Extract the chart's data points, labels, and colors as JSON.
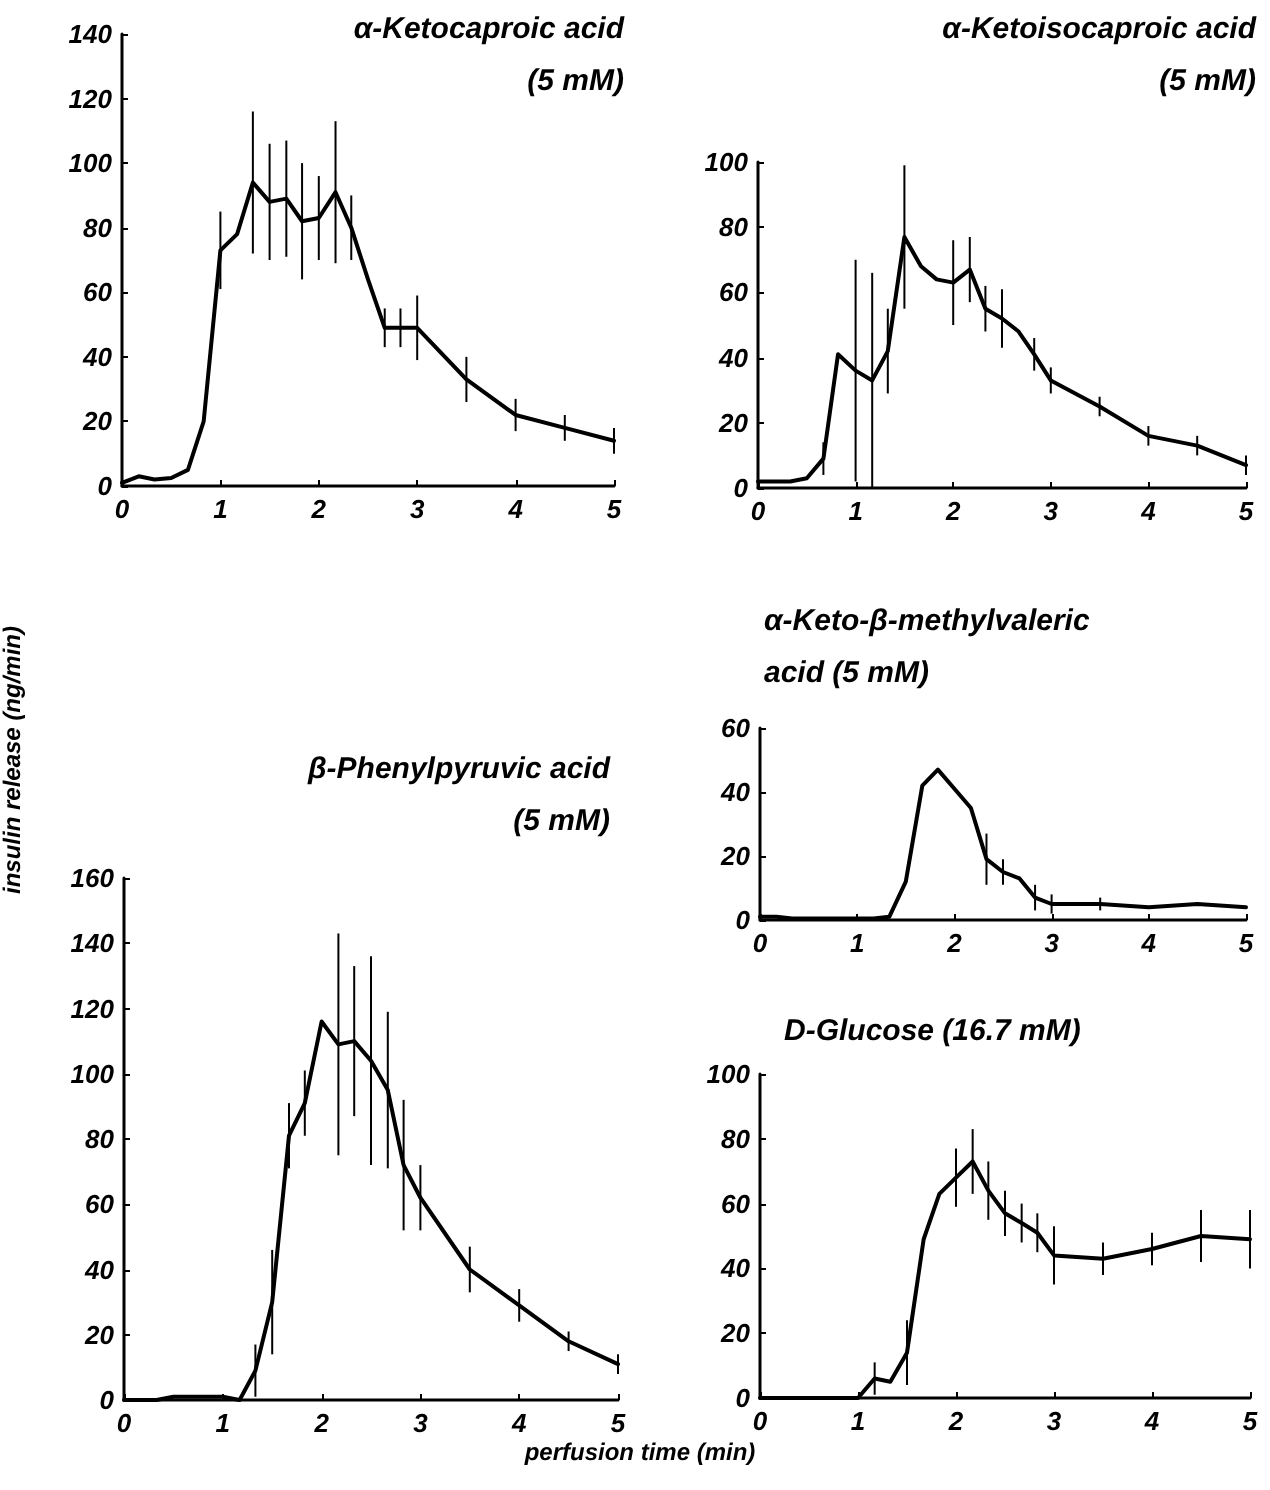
{
  "chart_data": [
    {
      "type": "line",
      "title": "α-Ketocaproic acid (5 mM)",
      "x": [
        0,
        0.17,
        0.33,
        0.5,
        0.67,
        0.83,
        1.0,
        1.17,
        1.33,
        1.5,
        1.67,
        1.83,
        2.0,
        2.17,
        2.33,
        2.5,
        2.67,
        2.83,
        3.0,
        3.5,
        4,
        4.5,
        5
      ],
      "xlim": [
        0,
        5
      ],
      "xticks": [
        0,
        1,
        2,
        3,
        4,
        5
      ],
      "ylim": [
        0,
        140
      ],
      "yticks": [
        0,
        20,
        40,
        60,
        80,
        100,
        120,
        140
      ],
      "line_style": "solid",
      "series": [
        {
          "color": "#000000",
          "values": [
            1,
            3,
            2,
            2.5,
            5,
            20,
            73,
            78,
            94,
            88,
            89,
            82,
            83,
            91,
            80,
            64,
            49,
            49,
            49,
            33,
            22,
            18,
            14
          ],
          "errors": [
            null,
            null,
            null,
            null,
            null,
            null,
            12,
            null,
            22,
            18,
            18,
            18,
            13,
            22,
            10,
            null,
            6,
            6,
            10,
            7,
            5,
            4,
            4
          ]
        }
      ]
    },
    {
      "type": "line",
      "title": "α-Ketoisocaproic acid (5 mM)",
      "x": [
        0,
        0.17,
        0.33,
        0.5,
        0.67,
        0.82,
        1.0,
        1.17,
        1.33,
        1.5,
        1.67,
        1.83,
        2.0,
        2.17,
        2.33,
        2.5,
        2.67,
        2.83,
        3.0,
        3.5,
        4,
        4.5,
        5
      ],
      "xlim": [
        0,
        5
      ],
      "xticks": [
        0,
        1,
        2,
        3,
        4,
        5
      ],
      "ylim": [
        0,
        100
      ],
      "yticks": [
        0,
        20,
        40,
        60,
        80,
        100
      ],
      "line_style": "solid",
      "series": [
        {
          "color": "#000000",
          "values": [
            2,
            2,
            2,
            3,
            9,
            41,
            36,
            33,
            42,
            77,
            68,
            64,
            63,
            67,
            55,
            52,
            48,
            41,
            33,
            25,
            16,
            13,
            7
          ],
          "errors": [
            null,
            null,
            null,
            null,
            5,
            null,
            34,
            33,
            13,
            22,
            null,
            null,
            13,
            10,
            7,
            9,
            null,
            5,
            4,
            3,
            3,
            3,
            3
          ]
        }
      ]
    },
    {
      "type": "line",
      "title": "β-Phenylpyruvic acid (5 mM)",
      "xlabel": "perfusion time (min)",
      "ylabel": "insulin release (ng/min)",
      "x": [
        0,
        0.17,
        0.33,
        0.5,
        0.67,
        0.83,
        1.0,
        1.17,
        1.33,
        1.5,
        1.67,
        1.83,
        2.0,
        2.17,
        2.33,
        2.5,
        2.67,
        2.83,
        3.0,
        3.5,
        4,
        4.5,
        5
      ],
      "xlim": [
        0,
        5
      ],
      "xticks": [
        0,
        1,
        2,
        3,
        4,
        5
      ],
      "ylim": [
        0,
        160
      ],
      "yticks": [
        0,
        20,
        40,
        60,
        80,
        100,
        120,
        140,
        160
      ],
      "line_style": "solid",
      "series": [
        {
          "color": "#000000",
          "values": [
            0,
            0,
            0,
            1,
            1,
            1,
            1,
            0,
            9,
            30,
            81,
            91,
            116,
            109,
            110,
            104,
            95,
            72,
            62,
            40,
            29,
            18,
            11
          ],
          "errors": [
            null,
            null,
            null,
            null,
            null,
            null,
            null,
            null,
            8,
            16,
            10,
            10,
            null,
            34,
            23,
            32,
            24,
            20,
            10,
            7,
            5,
            3,
            3
          ]
        }
      ]
    },
    {
      "type": "line",
      "title": "α-Keto-β-methylvaleric acid (5 mM)",
      "x": [
        0,
        0.17,
        0.33,
        0.5,
        0.67,
        0.83,
        1.0,
        1.17,
        1.33,
        1.5,
        1.67,
        1.83,
        2.0,
        2.17,
        2.33,
        2.5,
        2.67,
        2.83,
        3.0,
        3.5,
        4,
        4.5,
        5
      ],
      "xlim": [
        0,
        5
      ],
      "xticks": [
        0,
        1,
        2,
        3,
        4,
        5
      ],
      "ylim": [
        0,
        60
      ],
      "yticks": [
        0,
        20,
        40,
        60
      ],
      "line_style": "solid",
      "series": [
        {
          "color": "#000000",
          "values": [
            1,
            1,
            0.5,
            0.5,
            0.5,
            0.5,
            0.5,
            0.5,
            1,
            12,
            42,
            47,
            41,
            35,
            19,
            15,
            13,
            7,
            5,
            5,
            4,
            5,
            4
          ],
          "errors": [
            null,
            null,
            null,
            null,
            null,
            null,
            null,
            null,
            null,
            null,
            null,
            null,
            null,
            null,
            8,
            4,
            null,
            4,
            3,
            2,
            null,
            null,
            null
          ]
        }
      ]
    },
    {
      "type": "line",
      "title": "D-Glucose (16.7 mM)",
      "x": [
        0,
        0.5,
        1.0,
        1.17,
        1.33,
        1.5,
        1.67,
        1.83,
        2.0,
        2.17,
        2.33,
        2.5,
        2.67,
        2.83,
        3.0,
        3.5,
        4,
        4.5,
        5
      ],
      "xlim": [
        0,
        5
      ],
      "xticks": [
        0,
        1,
        2,
        3,
        4,
        5
      ],
      "ylim": [
        0,
        100
      ],
      "yticks": [
        0,
        20,
        40,
        60,
        80,
        100
      ],
      "line_style": "solid",
      "series": [
        {
          "color": "#000000",
          "values": [
            0,
            0,
            0,
            6,
            5,
            14,
            49,
            63,
            68,
            73,
            64,
            57,
            54,
            51,
            44,
            43,
            46,
            50,
            49
          ],
          "errors": [
            null,
            null,
            null,
            5,
            null,
            10,
            null,
            null,
            9,
            10,
            9,
            7,
            6,
            6,
            9,
            5,
            5,
            8,
            9
          ]
        }
      ]
    }
  ]
}
